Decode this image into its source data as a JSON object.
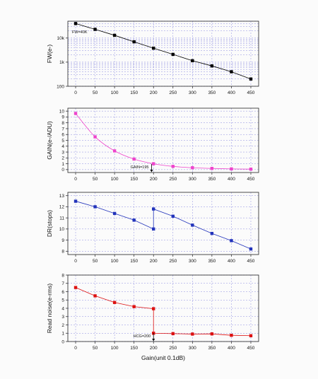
{
  "figure": {
    "xlabel": "Gain(unit 0.1dB)"
  },
  "chart_data": [
    {
      "id": "fw",
      "type": "line",
      "ylabel": "FW(e-)",
      "yscale": "log",
      "ylim": [
        100,
        50000
      ],
      "xlim": [
        -20,
        470
      ],
      "xticks": [
        0,
        50,
        100,
        150,
        200,
        250,
        300,
        350,
        400,
        450
      ],
      "ytick_labels": [
        {
          "value": 100,
          "label": "100"
        },
        {
          "value": 1000,
          "label": "1k"
        },
        {
          "value": 10000,
          "label": "10k"
        }
      ],
      "series": [
        {
          "color": "#000000",
          "x": [
            0,
            50,
            100,
            150,
            200,
            250,
            300,
            350,
            400,
            450
          ],
          "y": [
            40000,
            23000,
            13000,
            7000,
            3800,
            2100,
            1150,
            700,
            400,
            200
          ]
        }
      ],
      "annotations": [
        {
          "text": "FW=40K"
        }
      ]
    },
    {
      "id": "gain",
      "type": "line",
      "ylabel": "GAIN(e-/ADU)",
      "ylim": [
        -0.5,
        10.5
      ],
      "xlim": [
        -20,
        470
      ],
      "xticks": [
        0,
        50,
        100,
        150,
        200,
        250,
        300,
        350,
        400,
        450
      ],
      "yticks": [
        0,
        1,
        2,
        3,
        4,
        5,
        6,
        7,
        8,
        9,
        10
      ],
      "series": [
        {
          "color": "#ee44cc",
          "x": [
            0,
            50,
            100,
            150,
            200,
            250,
            300,
            350,
            400,
            450
          ],
          "y": [
            9.6,
            5.6,
            3.2,
            1.8,
            1.0,
            0.55,
            0.32,
            0.2,
            0.12,
            0.08
          ]
        }
      ],
      "annotations": [
        {
          "text": "GAIN=195",
          "x": 195
        }
      ]
    },
    {
      "id": "dr",
      "type": "line",
      "ylabel": "DR(stops)",
      "ylim": [
        7.7,
        13.3
      ],
      "xlim": [
        -20,
        470
      ],
      "xticks": [
        0,
        50,
        100,
        150,
        200,
        250,
        300,
        350,
        400,
        450
      ],
      "yticks": [
        8,
        9,
        10,
        11,
        12,
        13
      ],
      "series": [
        {
          "color": "#2233bb",
          "x": [
            0,
            50,
            100,
            150,
            200,
            200,
            250,
            300,
            350,
            400,
            450
          ],
          "y": [
            12.5,
            12.0,
            11.4,
            10.8,
            10.0,
            11.8,
            11.15,
            10.35,
            9.6,
            8.95,
            8.2
          ]
        }
      ]
    },
    {
      "id": "noise",
      "type": "line",
      "ylabel": "Read noise(e-rms)",
      "ylim": [
        0,
        8
      ],
      "xlim": [
        -20,
        470
      ],
      "xticks": [
        0,
        50,
        100,
        150,
        200,
        250,
        300,
        350,
        400,
        450
      ],
      "yticks": [
        0,
        1,
        2,
        3,
        4,
        5,
        6,
        7,
        8
      ],
      "series": [
        {
          "color": "#dd1111",
          "x": [
            0,
            50,
            100,
            150,
            200,
            200,
            250,
            300,
            350,
            400,
            450
          ],
          "y": [
            6.5,
            5.5,
            4.7,
            4.2,
            3.95,
            1.0,
            0.95,
            0.9,
            0.92,
            0.75,
            0.7
          ]
        }
      ],
      "annotations": [
        {
          "text": "HCG=200",
          "x": 200
        }
      ]
    }
  ]
}
